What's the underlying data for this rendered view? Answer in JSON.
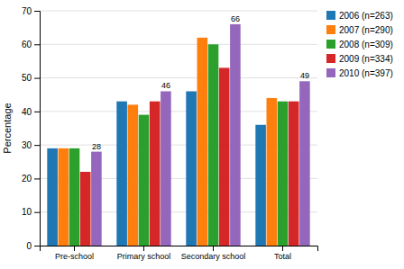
{
  "chart_data": {
    "type": "bar",
    "y_label": "Percentage",
    "categories": [
      "Pre-school",
      "Primary school",
      "Secondary school",
      "Total"
    ],
    "series": [
      {
        "name": "2006 (n=263)",
        "values": [
          29,
          43,
          46,
          36
        ]
      },
      {
        "name": "2007 (n=290)",
        "values": [
          29,
          42,
          62,
          44
        ]
      },
      {
        "name": "2008 (n=309)",
        "values": [
          29,
          39,
          60,
          43
        ]
      },
      {
        "name": "2009 (n=334)",
        "values": [
          22,
          43,
          53,
          43
        ]
      },
      {
        "name": "2010 (n=397)",
        "values": [
          28,
          46,
          66,
          49
        ],
        "data_labels": true
      }
    ],
    "ylim": [
      0,
      70
    ],
    "yticks": [
      0,
      10,
      20,
      30,
      40,
      50,
      60,
      70
    ],
    "grid": true,
    "legend": "right"
  }
}
